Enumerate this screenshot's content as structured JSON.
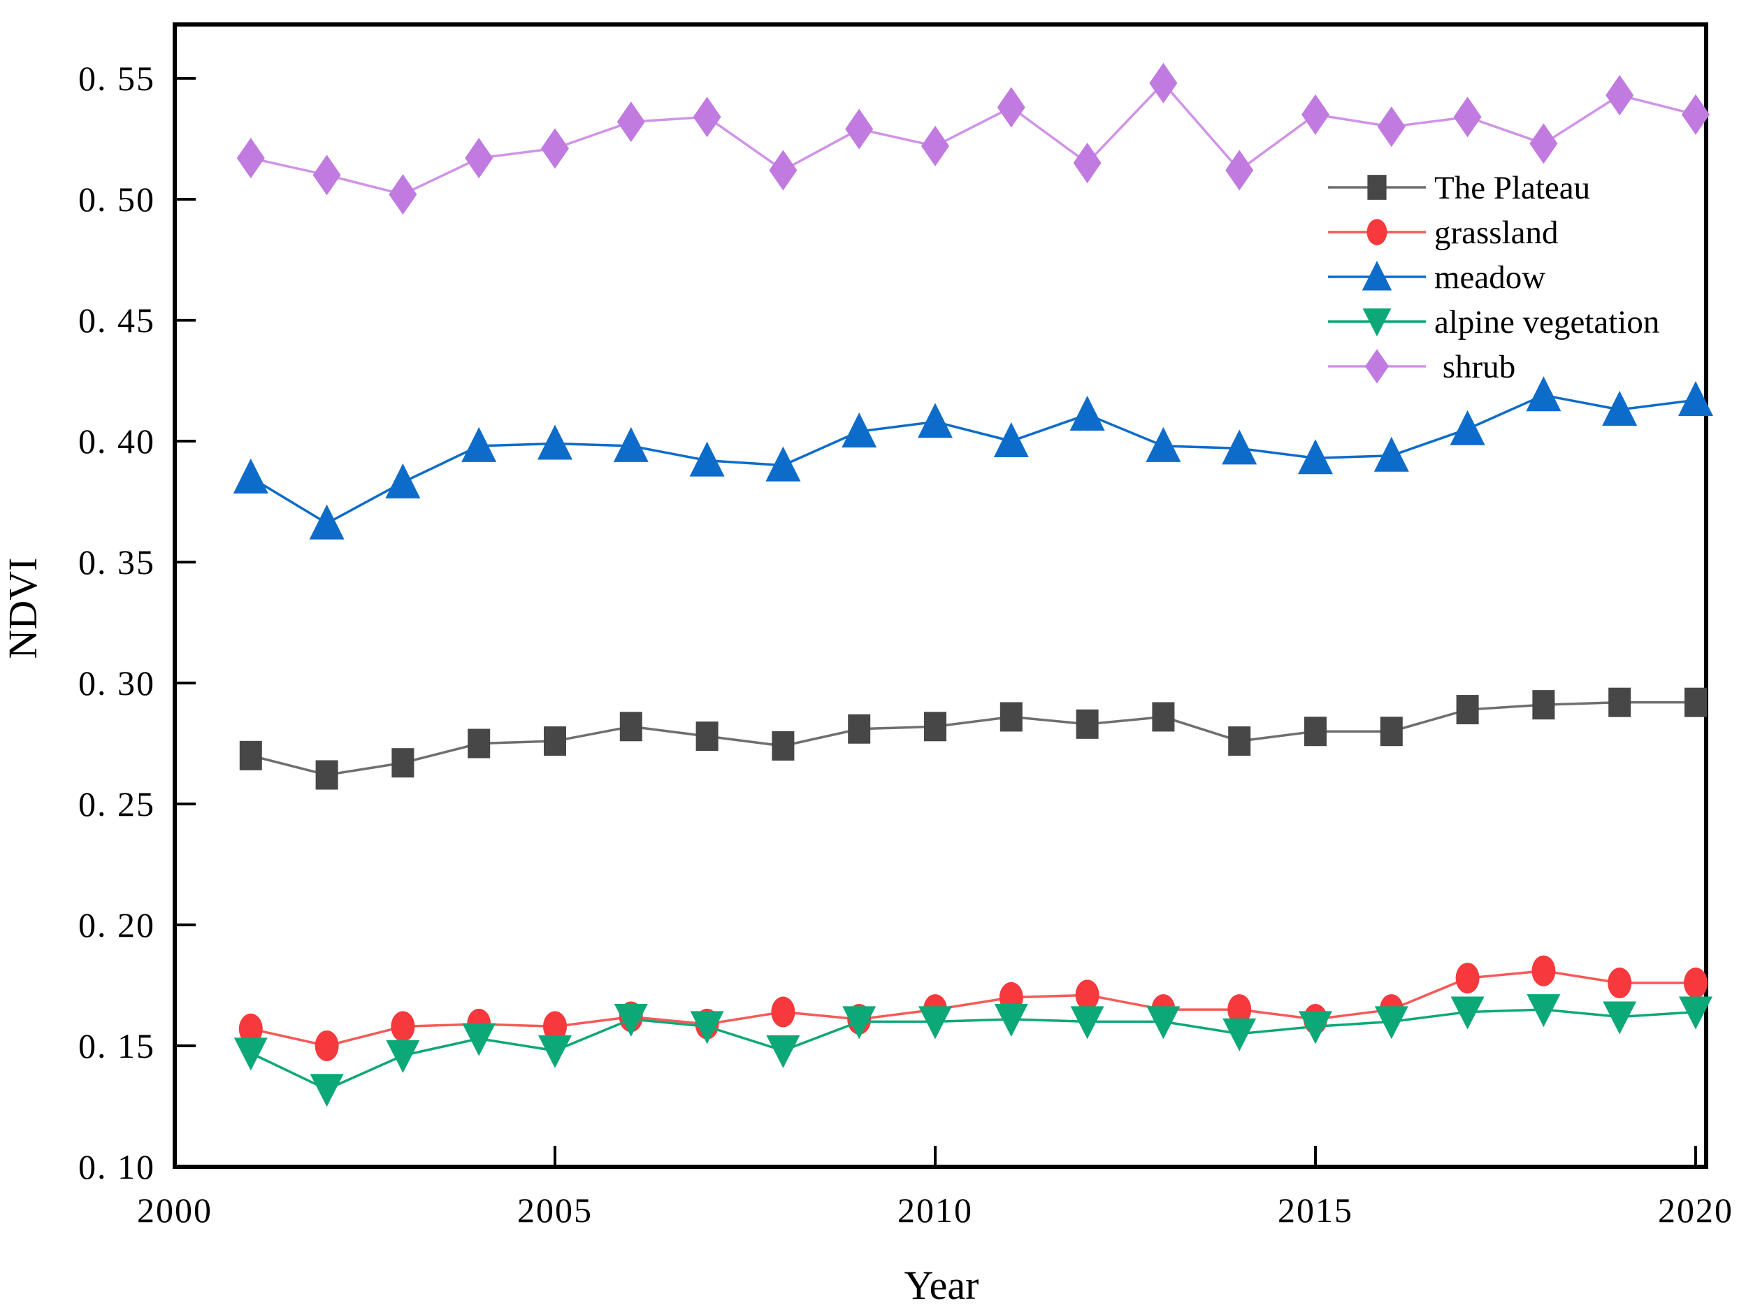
{
  "chart_data": {
    "type": "line",
    "title": "",
    "xlabel": "Year",
    "ylabel": "NDVI",
    "x": [
      2001,
      2002,
      2003,
      2004,
      2005,
      2006,
      2007,
      2008,
      2009,
      2010,
      2011,
      2012,
      2013,
      2014,
      2015,
      2016,
      2017,
      2018,
      2019,
      2020
    ],
    "series": [
      {
        "name": "The Plateau",
        "marker": "square",
        "color": "#474747",
        "line_color": "#6f6f6f",
        "values": [
          0.27,
          0.262,
          0.267,
          0.275,
          0.276,
          0.282,
          0.278,
          0.274,
          0.281,
          0.282,
          0.286,
          0.283,
          0.286,
          0.276,
          0.28,
          0.28,
          0.289,
          0.291,
          0.292,
          0.292
        ]
      },
      {
        "name": "grassland",
        "marker": "circle",
        "color": "#f5393d",
        "line_color": "#f55a58",
        "values": [
          0.157,
          0.15,
          0.158,
          0.159,
          0.158,
          0.162,
          0.159,
          0.164,
          0.161,
          0.165,
          0.17,
          0.171,
          0.165,
          0.165,
          0.161,
          0.165,
          0.178,
          0.181,
          0.176,
          0.176
        ]
      },
      {
        "name": "meadow",
        "marker": "triangle-up",
        "color": "#0d6cca",
        "line_color": "#0d6cca",
        "values": [
          0.385,
          0.366,
          0.383,
          0.398,
          0.399,
          0.398,
          0.392,
          0.39,
          0.404,
          0.408,
          0.4,
          0.411,
          0.398,
          0.397,
          0.393,
          0.394,
          0.405,
          0.419,
          0.413,
          0.417
        ]
      },
      {
        "name": "alpine vegetation",
        "marker": "triangle-down",
        "color": "#0da877",
        "line_color": "#0da877",
        "values": [
          0.147,
          0.132,
          0.146,
          0.153,
          0.148,
          0.161,
          0.158,
          0.148,
          0.16,
          0.16,
          0.161,
          0.16,
          0.16,
          0.155,
          0.158,
          0.16,
          0.164,
          0.165,
          0.162,
          0.164
        ]
      },
      {
        "name": " shrub",
        "marker": "diamond",
        "color": "#c17be0",
        "line_color": "#d093e8",
        "values": [
          0.517,
          0.51,
          0.502,
          0.517,
          0.521,
          0.532,
          0.534,
          0.512,
          0.529,
          0.522,
          0.538,
          0.515,
          0.548,
          0.512,
          0.535,
          0.53,
          0.534,
          0.523,
          0.543,
          0.535
        ]
      }
    ],
    "xlim": [
      2000,
      2020.15
    ],
    "ylim": [
      0.1,
      0.572
    ],
    "x_ticks": [
      2000,
      2005,
      2010,
      2015,
      2020
    ],
    "x_tick_labels": [
      "2000",
      "2005",
      "2010",
      "2015",
      "2020"
    ],
    "y_ticks": [
      0.1,
      0.15,
      0.2,
      0.25,
      0.3,
      0.35,
      0.4,
      0.45,
      0.5,
      0.55
    ],
    "y_tick_labels": [
      "0. 10",
      "0. 15",
      "0. 20",
      "0. 25",
      "0. 30",
      "0. 35",
      "0. 40",
      "0. 45",
      "0. 50",
      "0. 55"
    ],
    "grid": false,
    "legend_position": "upper-right-inside"
  }
}
